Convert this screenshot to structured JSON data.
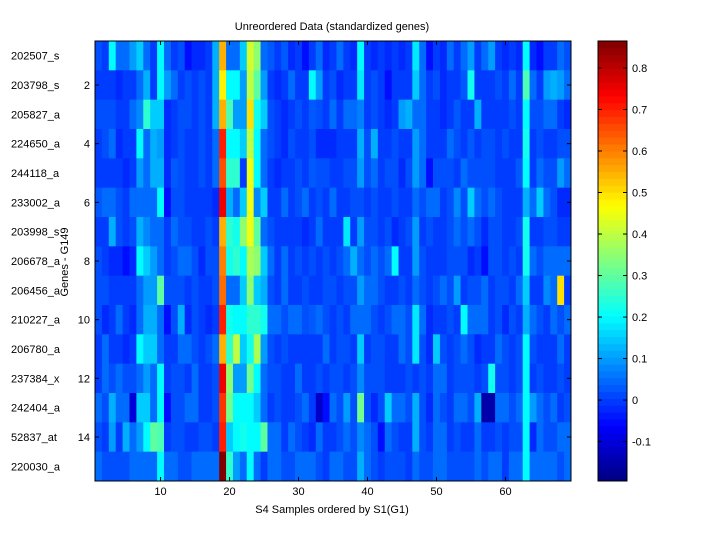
{
  "chart_data": {
    "type": "heatmap",
    "title": "Unreordered Data (standardized genes)",
    "xlabel": "S4 Samples ordered by S1(G1)",
    "ylabel": "Genes - G149",
    "n_columns": 69,
    "xlim": [
      0.5,
      69.5
    ],
    "x_ticks": [
      10,
      20,
      30,
      40,
      50,
      60
    ],
    "y_ticks": [
      2,
      4,
      6,
      8,
      10,
      12,
      14
    ],
    "row_labels": [
      "202507_s",
      "203798_s",
      "205827_a",
      "224650_a",
      "244118_a",
      "233002_a",
      "203998_s",
      "206678_a",
      "206456_a",
      "210227_a",
      "206780_a",
      "237384_x",
      "242404_a",
      "52837_at",
      "220030_a"
    ],
    "colormap": "jet",
    "clim": [
      -0.195,
      0.865
    ],
    "colorbar_ticks": [
      -0.1,
      0,
      0.1,
      0.2,
      0.3,
      0.4,
      0.5,
      0.6,
      0.7,
      0.8
    ],
    "colorbar_tick_labels": [
      "-0.1",
      "0",
      "0.1",
      "0.2",
      "0.3",
      "0.4",
      "0.5",
      "0.6",
      "0.7",
      "0.8"
    ],
    "values": [
      [
        0.02,
        0.0,
        0.2,
        0.05,
        0.05,
        0.1,
        0.15,
        0.05,
        0.0,
        0.2,
        0.05,
        0.0,
        0.02,
        -0.05,
        -0.02,
        -0.02,
        0.0,
        0.12,
        0.55,
        0.05,
        0.05,
        0.15,
        0.42,
        0.35,
        0.05,
        0.03,
        0.0,
        0.03,
        -0.02,
        0.0,
        -0.05,
        0.0,
        0.05,
        -0.02,
        0.0,
        0.05,
        0.0,
        -0.02,
        0.2,
        0.0,
        -0.02,
        0.0,
        -0.02,
        0.0,
        -0.02,
        0.0,
        0.18,
        0.05,
        -0.05,
        0.0,
        -0.02,
        0.05,
        0.0,
        0.05,
        0.1,
        0.0,
        0.05,
        0.1,
        0.0,
        -0.02,
        0.0,
        -0.02,
        0.2,
        -0.02,
        -0.05,
        0.0,
        0.0,
        0.05,
        0.02
      ],
      [
        0.0,
        0.0,
        0.0,
        -0.02,
        0.0,
        0.0,
        0.05,
        0.12,
        0.0,
        0.2,
        0.1,
        0.05,
        0.0,
        0.02,
        0.0,
        0.02,
        0.0,
        0.12,
        0.48,
        0.2,
        0.2,
        0.1,
        0.4,
        0.3,
        0.1,
        0.0,
        -0.02,
        0.0,
        0.05,
        0.0,
        0.0,
        0.2,
        0.1,
        0.0,
        0.02,
        -0.02,
        0.0,
        0.0,
        0.18,
        0.0,
        0.02,
        0.0,
        -0.05,
        0.0,
        0.0,
        0.0,
        0.15,
        0.05,
        0.0,
        0.02,
        -0.02,
        0.0,
        0.0,
        0.03,
        0.22,
        0.0,
        0.0,
        0.0,
        0.02,
        0.0,
        0.05,
        0.0,
        0.28,
        0.05,
        0.0,
        0.1,
        0.12,
        0.1,
        0.05
      ],
      [
        0.02,
        0.02,
        0.02,
        0.0,
        0.0,
        0.05,
        0.08,
        0.25,
        0.15,
        0.15,
        -0.02,
        0.0,
        0.02,
        0.02,
        0.0,
        0.02,
        0.0,
        0.12,
        0.55,
        0.28,
        0.1,
        0.1,
        0.5,
        0.22,
        0.15,
        0.02,
        0.0,
        -0.02,
        0.0,
        0.02,
        0.0,
        0.03,
        0.02,
        0.0,
        0.05,
        0.0,
        0.05,
        0.05,
        0.07,
        0.0,
        0.02,
        0.0,
        -0.02,
        0.0,
        0.1,
        0.12,
        0.05,
        0.05,
        0.0,
        0.0,
        -0.02,
        0.0,
        0.03,
        0.0,
        0.0,
        0.12,
        0.0,
        0.0,
        0.0,
        0.0,
        0.02,
        0.0,
        0.2,
        0.02,
        0.02,
        0.05,
        0.05,
        0.0,
        -0.02
      ],
      [
        0.0,
        0.02,
        0.05,
        -0.02,
        0.0,
        0.0,
        0.2,
        0.05,
        0.12,
        0.1,
        -0.02,
        0.0,
        0.02,
        0.0,
        0.0,
        0.02,
        0.0,
        0.05,
        0.7,
        0.2,
        0.2,
        0.15,
        0.4,
        0.2,
        0.05,
        0.02,
        0.0,
        -0.02,
        0.02,
        0.0,
        0.0,
        0.02,
        -0.02,
        -0.02,
        -0.02,
        0.0,
        0.0,
        0.0,
        0.12,
        0.02,
        0.12,
        0.0,
        0.0,
        0.02,
        0.0,
        0.0,
        0.1,
        0.05,
        0.0,
        0.0,
        0.0,
        0.05,
        0.02,
        0.0,
        0.03,
        0.0,
        0.02,
        0.02,
        0.0,
        0.02,
        0.0,
        0.0,
        0.22,
        0.0,
        0.02,
        0.0,
        0.0,
        0.02,
        0.02
      ],
      [
        0.0,
        0.0,
        0.0,
        0.0,
        -0.02,
        0.0,
        0.1,
        0.05,
        0.12,
        0.12,
        -0.02,
        0.03,
        0.02,
        0.0,
        0.0,
        0.02,
        0.0,
        0.05,
        0.65,
        0.25,
        0.25,
        0.0,
        0.45,
        0.2,
        0.05,
        0.0,
        -0.02,
        0.0,
        0.0,
        0.02,
        0.0,
        0.03,
        0.02,
        0.02,
        0.0,
        0.0,
        0.02,
        0.02,
        0.1,
        0.02,
        0.05,
        0.0,
        0.02,
        0.02,
        -0.02,
        0.02,
        0.1,
        0.05,
        -0.05,
        0.02,
        0.02,
        0.02,
        0.0,
        0.05,
        0.02,
        0.02,
        0.02,
        0.02,
        0.0,
        0.0,
        0.0,
        0.03,
        0.2,
        0.0,
        0.05,
        0.02,
        0.02,
        0.1,
        0.05
      ],
      [
        0.03,
        0.05,
        0.05,
        0.02,
        0.0,
        0.05,
        0.05,
        0.05,
        0.05,
        0.2,
        -0.05,
        0.02,
        0.02,
        0.0,
        0.0,
        0.0,
        0.0,
        -0.02,
        0.75,
        0.12,
        0.05,
        0.15,
        0.45,
        0.08,
        0.15,
        0.0,
        0.0,
        0.05,
        0.0,
        0.02,
        0.05,
        0.0,
        0.02,
        0.0,
        0.05,
        0.0,
        0.0,
        0.02,
        0.02,
        0.0,
        0.02,
        0.0,
        0.0,
        0.02,
        0.0,
        0.0,
        0.05,
        0.02,
        0.05,
        0.05,
        0.0,
        0.02,
        0.08,
        0.02,
        0.15,
        0.05,
        0.02,
        0.05,
        0.02,
        0.0,
        0.0,
        0.0,
        0.12,
        0.05,
        0.15,
        0.05,
        0.02,
        -0.02,
        -0.02
      ],
      [
        0.0,
        0.0,
        0.12,
        0.02,
        0.0,
        0.02,
        0.12,
        0.08,
        0.05,
        0.05,
        0.0,
        0.05,
        0.02,
        0.02,
        0.0,
        0.0,
        0.02,
        0.0,
        0.55,
        0.25,
        0.22,
        0.35,
        0.45,
        0.3,
        0.05,
        0.02,
        0.0,
        0.0,
        0.0,
        0.0,
        -0.02,
        0.0,
        0.05,
        0.0,
        0.0,
        0.0,
        0.18,
        0.0,
        0.1,
        0.02,
        0.02,
        0.0,
        0.02,
        -0.02,
        0.0,
        0.02,
        0.1,
        0.0,
        0.02,
        0.0,
        0.0,
        0.02,
        0.05,
        0.02,
        0.05,
        0.02,
        -0.02,
        0.02,
        0.02,
        0.0,
        0.0,
        0.02,
        0.22,
        0.0,
        0.0,
        0.02,
        0.02,
        0.0,
        0.0
      ],
      [
        0.02,
        0.0,
        -0.02,
        -0.02,
        -0.05,
        -0.02,
        0.2,
        0.15,
        0.1,
        0.05,
        0.0,
        0.02,
        0.05,
        0.05,
        0.02,
        -0.02,
        0.02,
        0.02,
        0.6,
        0.22,
        0.25,
        0.2,
        0.38,
        0.35,
        0.15,
        0.05,
        0.0,
        0.05,
        0.0,
        0.02,
        0.0,
        0.02,
        0.0,
        0.02,
        0.0,
        0.02,
        0.05,
        0.12,
        0.05,
        0.02,
        0.05,
        0.02,
        0.05,
        0.2,
        0.0,
        0.0,
        0.1,
        0.02,
        0.0,
        0.0,
        0.0,
        0.02,
        0.02,
        0.02,
        -0.02,
        0.0,
        -0.05,
        0.02,
        0.02,
        0.0,
        0.02,
        0.0,
        0.22,
        0.05,
        0.02,
        0.05,
        0.05,
        0.05,
        0.05
      ],
      [
        0.02,
        0.02,
        0.0,
        0.0,
        0.0,
        0.0,
        0.05,
        0.1,
        0.1,
        0.3,
        0.02,
        0.02,
        0.02,
        0.0,
        0.02,
        0.0,
        0.0,
        0.02,
        0.62,
        0.05,
        0.05,
        0.15,
        0.35,
        0.15,
        0.12,
        0.02,
        0.0,
        0.05,
        0.0,
        0.0,
        0.02,
        0.0,
        0.0,
        0.02,
        0.02,
        0.0,
        0.02,
        0.02,
        0.1,
        0.05,
        0.05,
        0.02,
        0.0,
        0.0,
        0.02,
        0.0,
        0.05,
        0.02,
        0.0,
        0.02,
        0.05,
        0.02,
        0.1,
        0.0,
        0.02,
        0.02,
        0.05,
        0.0,
        0.02,
        0.02,
        0.0,
        0.05,
        0.15,
        0.0,
        0.0,
        0.08,
        0.05,
        0.5,
        0.0
      ],
      [
        0.02,
        -0.02,
        0.0,
        0.05,
        0.0,
        -0.02,
        0.05,
        0.12,
        0.12,
        0.05,
        -0.05,
        0.02,
        0.12,
        -0.02,
        0.02,
        0.0,
        -0.02,
        0.0,
        0.7,
        0.22,
        0.2,
        0.2,
        0.25,
        0.25,
        0.22,
        0.05,
        0.05,
        0.02,
        0.05,
        0.05,
        0.02,
        0.03,
        0.05,
        0.02,
        0.0,
        0.02,
        0.0,
        0.05,
        0.05,
        0.05,
        0.02,
        0.0,
        0.02,
        0.05,
        0.05,
        0.02,
        0.18,
        0.05,
        -0.02,
        0.0,
        0.0,
        0.02,
        0.0,
        0.2,
        0.05,
        0.05,
        0.05,
        0.0,
        0.02,
        -0.02,
        0.02,
        0.0,
        0.12,
        0.05,
        0.02,
        0.0,
        0.05,
        0.02,
        0.05
      ],
      [
        0.0,
        0.05,
        0.0,
        0.0,
        -0.02,
        0.0,
        0.2,
        0.15,
        0.15,
        0.05,
        0.0,
        0.0,
        0.05,
        0.05,
        0.02,
        0.0,
        0.02,
        0.05,
        0.55,
        0.25,
        0.4,
        0.15,
        0.22,
        0.38,
        0.1,
        0.02,
        0.0,
        0.02,
        0.0,
        0.0,
        0.0,
        0.0,
        0.0,
        0.05,
        0.0,
        0.02,
        0.02,
        0.0,
        0.15,
        0.0,
        0.02,
        0.02,
        0.0,
        0.0,
        0.05,
        0.02,
        0.18,
        0.02,
        -0.02,
        0.15,
        0.02,
        0.0,
        0.02,
        0.05,
        0.02,
        -0.02,
        0.0,
        0.0,
        0.05,
        0.02,
        0.0,
        0.02,
        0.2,
        0.02,
        0.0,
        0.0,
        0.0,
        0.05,
        0.0
      ],
      [
        0.0,
        0.05,
        0.02,
        0.05,
        0.02,
        0.02,
        0.05,
        0.1,
        0.05,
        0.2,
        0.0,
        0.02,
        0.02,
        0.0,
        0.05,
        0.0,
        0.0,
        0.02,
        0.75,
        0.35,
        0.1,
        0.1,
        0.32,
        0.2,
        0.05,
        0.02,
        0.02,
        0.0,
        0.0,
        0.05,
        0.0,
        0.0,
        0.02,
        0.0,
        0.02,
        0.02,
        0.0,
        0.02,
        0.08,
        0.02,
        0.02,
        0.02,
        0.0,
        0.0,
        0.0,
        0.02,
        0.0,
        0.02,
        0.0,
        0.05,
        0.05,
        0.0,
        0.02,
        0.02,
        0.02,
        0.0,
        0.02,
        0.22,
        0.02,
        0.02,
        0.0,
        0.02,
        0.2,
        0.0,
        0.02,
        0.0,
        0.0,
        0.02,
        0.0
      ],
      [
        0.05,
        0.02,
        0.12,
        0.05,
        0.05,
        -0.1,
        0.15,
        0.15,
        0.05,
        0.2,
        -0.05,
        0.02,
        0.02,
        0.05,
        0.05,
        0.0,
        0.0,
        0.02,
        0.68,
        0.32,
        0.2,
        0.2,
        0.2,
        0.15,
        0.05,
        0.0,
        0.02,
        0.0,
        0.0,
        0.02,
        0.05,
        0.0,
        -0.12,
        -0.05,
        0.05,
        0.02,
        0.1,
        0.02,
        0.32,
        0.02,
        -0.02,
        0.02,
        0.15,
        0.05,
        0.05,
        0.02,
        0.12,
        0.02,
        -0.02,
        0.05,
        0.02,
        0.0,
        0.05,
        0.05,
        0.02,
        0.12,
        -0.15,
        -0.15,
        0.05,
        0.05,
        0.02,
        0.05,
        0.2,
        0.1,
        0.05,
        0.02,
        0.05,
        0.0,
        0.02
      ],
      [
        0.02,
        0.0,
        0.1,
        0.0,
        0.12,
        0.05,
        0.1,
        0.2,
        0.3,
        0.28,
        0.0,
        0.02,
        0.02,
        0.0,
        0.0,
        0.02,
        0.02,
        0.0,
        0.7,
        0.15,
        0.2,
        0.22,
        0.2,
        0.2,
        0.3,
        0.05,
        0.05,
        0.0,
        0.05,
        0.02,
        0.0,
        -0.02,
        0.05,
        0.0,
        0.0,
        0.02,
        0.05,
        0.02,
        0.08,
        0.05,
        0.02,
        -0.05,
        0.05,
        0.02,
        0.0,
        0.0,
        0.12,
        0.02,
        0.0,
        0.05,
        0.05,
        0.0,
        0.02,
        0.0,
        0.0,
        0.05,
        0.0,
        0.0,
        0.02,
        0.0,
        0.02,
        0.02,
        0.2,
        -0.02,
        0.05,
        0.02,
        0.02,
        0.05,
        0.05
      ],
      [
        0.05,
        0.02,
        0.02,
        0.02,
        0.02,
        0.05,
        0.05,
        0.05,
        0.05,
        0.2,
        0.05,
        0.05,
        0.02,
        0.02,
        0.05,
        0.05,
        0.05,
        0.05,
        0.87,
        0.25,
        0.1,
        0.05,
        0.2,
        0.05,
        0.0,
        0.05,
        0.05,
        0.02,
        0.02,
        0.05,
        0.05,
        0.05,
        0.02,
        0.0,
        0.05,
        0.05,
        0.02,
        0.02,
        0.12,
        0.05,
        0.02,
        0.0,
        0.02,
        0.02,
        0.02,
        0.0,
        0.05,
        0.02,
        0.02,
        0.05,
        0.05,
        0.02,
        0.02,
        0.02,
        0.02,
        0.05,
        0.02,
        0.05,
        0.05,
        0.0,
        0.05,
        0.05,
        0.2,
        0.05,
        0.05,
        0.05,
        0.05,
        0.02,
        0.05
      ]
    ]
  }
}
